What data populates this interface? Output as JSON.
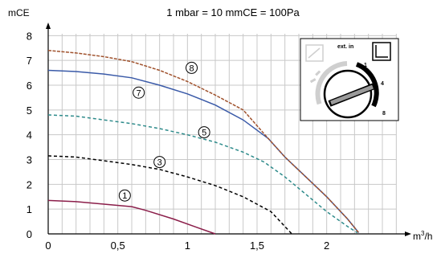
{
  "chart_data": {
    "type": "line",
    "title": "1 mbar = 10 mmCE = 100Pa",
    "ylabel": "mCE",
    "xlabel_base": "m",
    "xlabel_sup": "3",
    "xlabel_tail": "/h",
    "xlim": [
      0,
      2.55
    ],
    "ylim": [
      0,
      8.4
    ],
    "x_ticks": [
      0,
      0.5,
      1,
      1.5,
      2
    ],
    "x_tick_labels": [
      "0",
      "0,5",
      "1",
      "1,5",
      "2"
    ],
    "y_ticks": [
      0,
      1,
      2,
      3,
      4,
      5,
      6,
      7,
      8
    ],
    "y_tick_labels": [
      "0",
      "1",
      "2",
      "3",
      "4",
      "5",
      "6",
      "7",
      "8"
    ],
    "grid": true,
    "series": [
      {
        "name": "1",
        "color": "#8b1e4a",
        "dash": "",
        "label_at": [
          0.55,
          1.55
        ],
        "points": [
          [
            0,
            1.35
          ],
          [
            0.2,
            1.3
          ],
          [
            0.4,
            1.2
          ],
          [
            0.6,
            1.1
          ],
          [
            0.7,
            0.95
          ],
          [
            0.9,
            0.6
          ],
          [
            1.05,
            0.3
          ],
          [
            1.2,
            0.0
          ]
        ]
      },
      {
        "name": "3",
        "color": "#000000",
        "dash": "4,3",
        "label_at": [
          0.8,
          2.9
        ],
        "points": [
          [
            0,
            3.15
          ],
          [
            0.2,
            3.1
          ],
          [
            0.4,
            2.95
          ],
          [
            0.6,
            2.8
          ],
          [
            0.8,
            2.6
          ],
          [
            1.0,
            2.3
          ],
          [
            1.2,
            1.95
          ],
          [
            1.4,
            1.5
          ],
          [
            1.6,
            0.9
          ],
          [
            1.75,
            0.0
          ]
        ]
      },
      {
        "name": "5",
        "color": "#2e8b8b",
        "dash": "4,3",
        "label_at": [
          1.12,
          4.1
        ],
        "points": [
          [
            0,
            4.8
          ],
          [
            0.2,
            4.75
          ],
          [
            0.4,
            4.6
          ],
          [
            0.6,
            4.45
          ],
          [
            0.8,
            4.25
          ],
          [
            1.0,
            4.0
          ],
          [
            1.2,
            3.7
          ],
          [
            1.4,
            3.3
          ],
          [
            1.55,
            2.9
          ],
          [
            1.7,
            2.3
          ],
          [
            1.85,
            1.6
          ],
          [
            2.0,
            0.9
          ],
          [
            2.15,
            0.3
          ],
          [
            2.22,
            0.05
          ]
        ]
      },
      {
        "name": "7",
        "color": "#3a5aa8",
        "dash": "",
        "label_at": [
          0.65,
          5.7
        ],
        "points": [
          [
            0,
            6.6
          ],
          [
            0.2,
            6.55
          ],
          [
            0.4,
            6.45
          ],
          [
            0.6,
            6.3
          ],
          [
            0.8,
            6.0
          ],
          [
            1.0,
            5.65
          ],
          [
            1.2,
            5.2
          ],
          [
            1.4,
            4.6
          ],
          [
            1.58,
            3.85
          ],
          [
            1.7,
            3.1
          ],
          [
            1.85,
            2.3
          ],
          [
            2.0,
            1.5
          ],
          [
            2.15,
            0.6
          ],
          [
            2.23,
            0.05
          ]
        ]
      },
      {
        "name": "8",
        "color": "#a0522d",
        "dash": "4,1.5",
        "label_at": [
          1.03,
          6.7
        ],
        "points": [
          [
            0,
            7.4
          ],
          [
            0.2,
            7.3
          ],
          [
            0.4,
            7.15
          ],
          [
            0.6,
            6.95
          ],
          [
            0.8,
            6.6
          ],
          [
            1.0,
            6.15
          ],
          [
            1.2,
            5.6
          ],
          [
            1.4,
            5.0
          ],
          [
            1.58,
            3.85
          ],
          [
            1.7,
            3.1
          ],
          [
            1.85,
            2.3
          ],
          [
            2.0,
            1.5
          ],
          [
            2.15,
            0.6
          ],
          [
            2.23,
            0.05
          ]
        ]
      }
    ],
    "inset": {
      "label": "ext. in",
      "dial_labels": [
        "1",
        "4",
        "8"
      ]
    }
  }
}
